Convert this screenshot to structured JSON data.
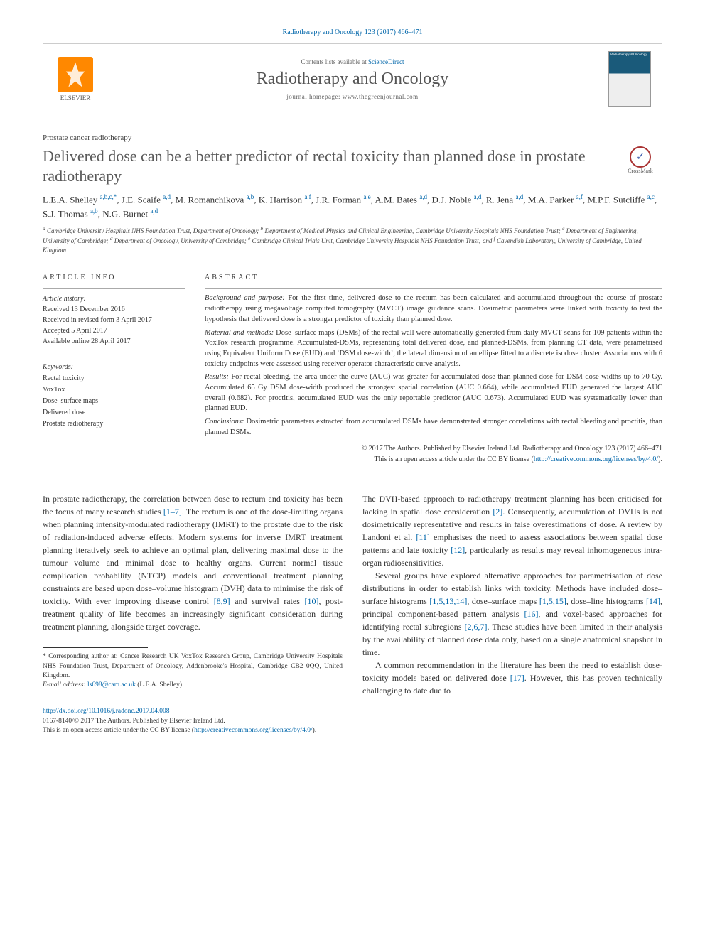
{
  "header": {
    "citation": "Radiotherapy and Oncology 123 (2017) 466–471",
    "contents_prefix": "Contents lists available at ",
    "contents_link": "ScienceDirect",
    "journal_name": "Radiotherapy and Oncology",
    "homepage_prefix": "journal homepage: ",
    "homepage_url": "www.thegreenjournal.com",
    "elsevier_label": "ELSEVIER",
    "cover_title": "Radiotherapy &Oncology"
  },
  "article": {
    "type": "Prostate cancer radiotherapy",
    "title": "Delivered dose can be a better predictor of rectal toxicity than planned dose in prostate radiotherapy",
    "crossmark": "CrossMark",
    "authors_html": "L.E.A. Shelley <sup>a,b,c,*</sup>, J.E. Scaife <sup>a,d</sup>, M. Romanchikova <sup>a,b</sup>, K. Harrison <sup>a,f</sup>, J.R. Forman <sup>a,e</sup>, A.M. Bates <sup>a,d</sup>, D.J. Noble <sup>a,d</sup>, R. Jena <sup>a,d</sup>, M.A. Parker <sup>a,f</sup>, M.P.F. Sutcliffe <sup>a,c</sup>, S.J. Thomas <sup>a,b</sup>, N.G. Burnet <sup>a,d</sup>",
    "affiliations": "<sup>a</sup> Cambridge University Hospitals NHS Foundation Trust, Department of Oncology; <sup>b</sup> Department of Medical Physics and Clinical Engineering, Cambridge University Hospitals NHS Foundation Trust; <sup>c</sup> Department of Engineering, University of Cambridge; <sup>d</sup> Department of Oncology, University of Cambridge; <sup>e</sup> Cambridge Clinical Trials Unit, Cambridge University Hospitals NHS Foundation Trust; and <sup>f</sup> Cavendish Laboratory, University of Cambridge, United Kingdom"
  },
  "info": {
    "heading": "article info",
    "history_label": "Article history:",
    "received": "Received 13 December 2016",
    "revised": "Received in revised form 3 April 2017",
    "accepted": "Accepted 5 April 2017",
    "online": "Available online 28 April 2017",
    "keywords_label": "Keywords:",
    "keywords": [
      "Rectal toxicity",
      "VoxTox",
      "Dose–surface maps",
      "Delivered dose",
      "Prostate radiotherapy"
    ]
  },
  "abstract": {
    "heading": "abstract",
    "paragraphs": [
      {
        "label": "Background and purpose:",
        "text": "For the first time, delivered dose to the rectum has been calculated and accumulated throughout the course of prostate radiotherapy using megavoltage computed tomography (MVCT) image guidance scans. Dosimetric parameters were linked with toxicity to test the hypothesis that delivered dose is a stronger predictor of toxicity than planned dose."
      },
      {
        "label": "Material and methods:",
        "text": "Dose–surface maps (DSMs) of the rectal wall were automatically generated from daily MVCT scans for 109 patients within the VoxTox research programme. Accumulated-DSMs, representing total delivered dose, and planned-DSMs, from planning CT data, were parametrised using Equivalent Uniform Dose (EUD) and ‘DSM dose-width’, the lateral dimension of an ellipse fitted to a discrete isodose cluster. Associations with 6 toxicity endpoints were assessed using receiver operator characteristic curve analysis."
      },
      {
        "label": "Results:",
        "text": "For rectal bleeding, the area under the curve (AUC) was greater for accumulated dose than planned dose for DSM dose-widths up to 70 Gy. Accumulated 65 Gy DSM dose-width produced the strongest spatial correlation (AUC 0.664), while accumulated EUD generated the largest AUC overall (0.682). For proctitis, accumulated EUD was the only reportable predictor (AUC 0.673). Accumulated EUD was systematically lower than planned EUD."
      },
      {
        "label": "Conclusions:",
        "text": "Dosimetric parameters extracted from accumulated DSMs have demonstrated stronger correlations with rectal bleeding and proctitis, than planned DSMs."
      }
    ],
    "copyright_line1": "© 2017 The Authors. Published by Elsevier Ireland Ltd. Radiotherapy and Oncology 123 (2017) 466–471",
    "copyright_line2_prefix": "This is an open access article under the CC BY license (",
    "copyright_link": "http://creativecommons.org/licenses/by/4.0/",
    "copyright_line2_suffix": ")."
  },
  "body": {
    "p1": "In prostate radiotherapy, the correlation between dose to rectum and toxicity has been the focus of many research studies [1–7]. The rectum is one of the dose-limiting organs when planning intensity-modulated radiotherapy (IMRT) to the prostate due to the risk of radiation-induced adverse effects. Modern systems for inverse IMRT treatment planning iteratively seek to achieve an optimal plan, delivering maximal dose to the tumour volume and minimal dose to healthy organs. Current normal tissue complication probability (NTCP) models and conventional treatment planning constraints are based upon dose–volume histogram (DVH) data to minimise the risk of toxicity. With ever improving disease control [8,9] and survival rates [10], post-treatment quality of life becomes an increasingly significant consideration during treatment planning, alongside target coverage.",
    "p2": "The DVH-based approach to radiotherapy treatment planning has been criticised for lacking in spatial dose consideration [2]. Consequently, accumulation of DVHs is not dosimetrically representative and results in false overestimations of dose. A review by Landoni et al. [11] emphasises the need to assess associations between spatial dose patterns and late toxicity [12], particularly as results may reveal inhomogeneous intra-organ radiosensitivities.",
    "p3": "Several groups have explored alternative approaches for parametrisation of dose distributions in order to establish links with toxicity. Methods have included dose–surface histograms [1,5,13,14], dose–surface maps [1,5,15], dose–line histograms [14], principal component-based pattern analysis [16], and voxel-based approaches for identifying rectal subregions [2,6,7]. These studies have been limited in their analysis by the availability of planned dose data only, based on a single anatomical snapshot in time.",
    "p4": "A common recommendation in the literature has been the need to establish dose-toxicity models based on delivered dose [17]. However, this has proven technically challenging to date due to"
  },
  "footnotes": {
    "corresponding_marker": "*",
    "corresponding": "Corresponding author at: Cancer Research UK VoxTox Research Group, Cambridge University Hospitals NHS Foundation Trust, Department of Oncology, Addenbrooke's Hospital, Cambridge CB2 0QQ, United Kingdom.",
    "email_label": "E-mail address:",
    "email": "ls698@cam.ac.uk",
    "email_name": "(L.E.A. Shelley)."
  },
  "footer": {
    "doi": "http://dx.doi.org/10.1016/j.radonc.2017.04.008",
    "issn_line": "0167-8140/© 2017 The Authors. Published by Elsevier Ireland Ltd.",
    "cc_prefix": "This is an open access article under the CC BY license (",
    "cc_link": "http://creativecommons.org/licenses/by/4.0/",
    "cc_suffix": ")."
  },
  "colors": {
    "link": "#0066aa",
    "elsevier_orange": "#ff8800",
    "text": "#333333",
    "rule": "#333333"
  }
}
